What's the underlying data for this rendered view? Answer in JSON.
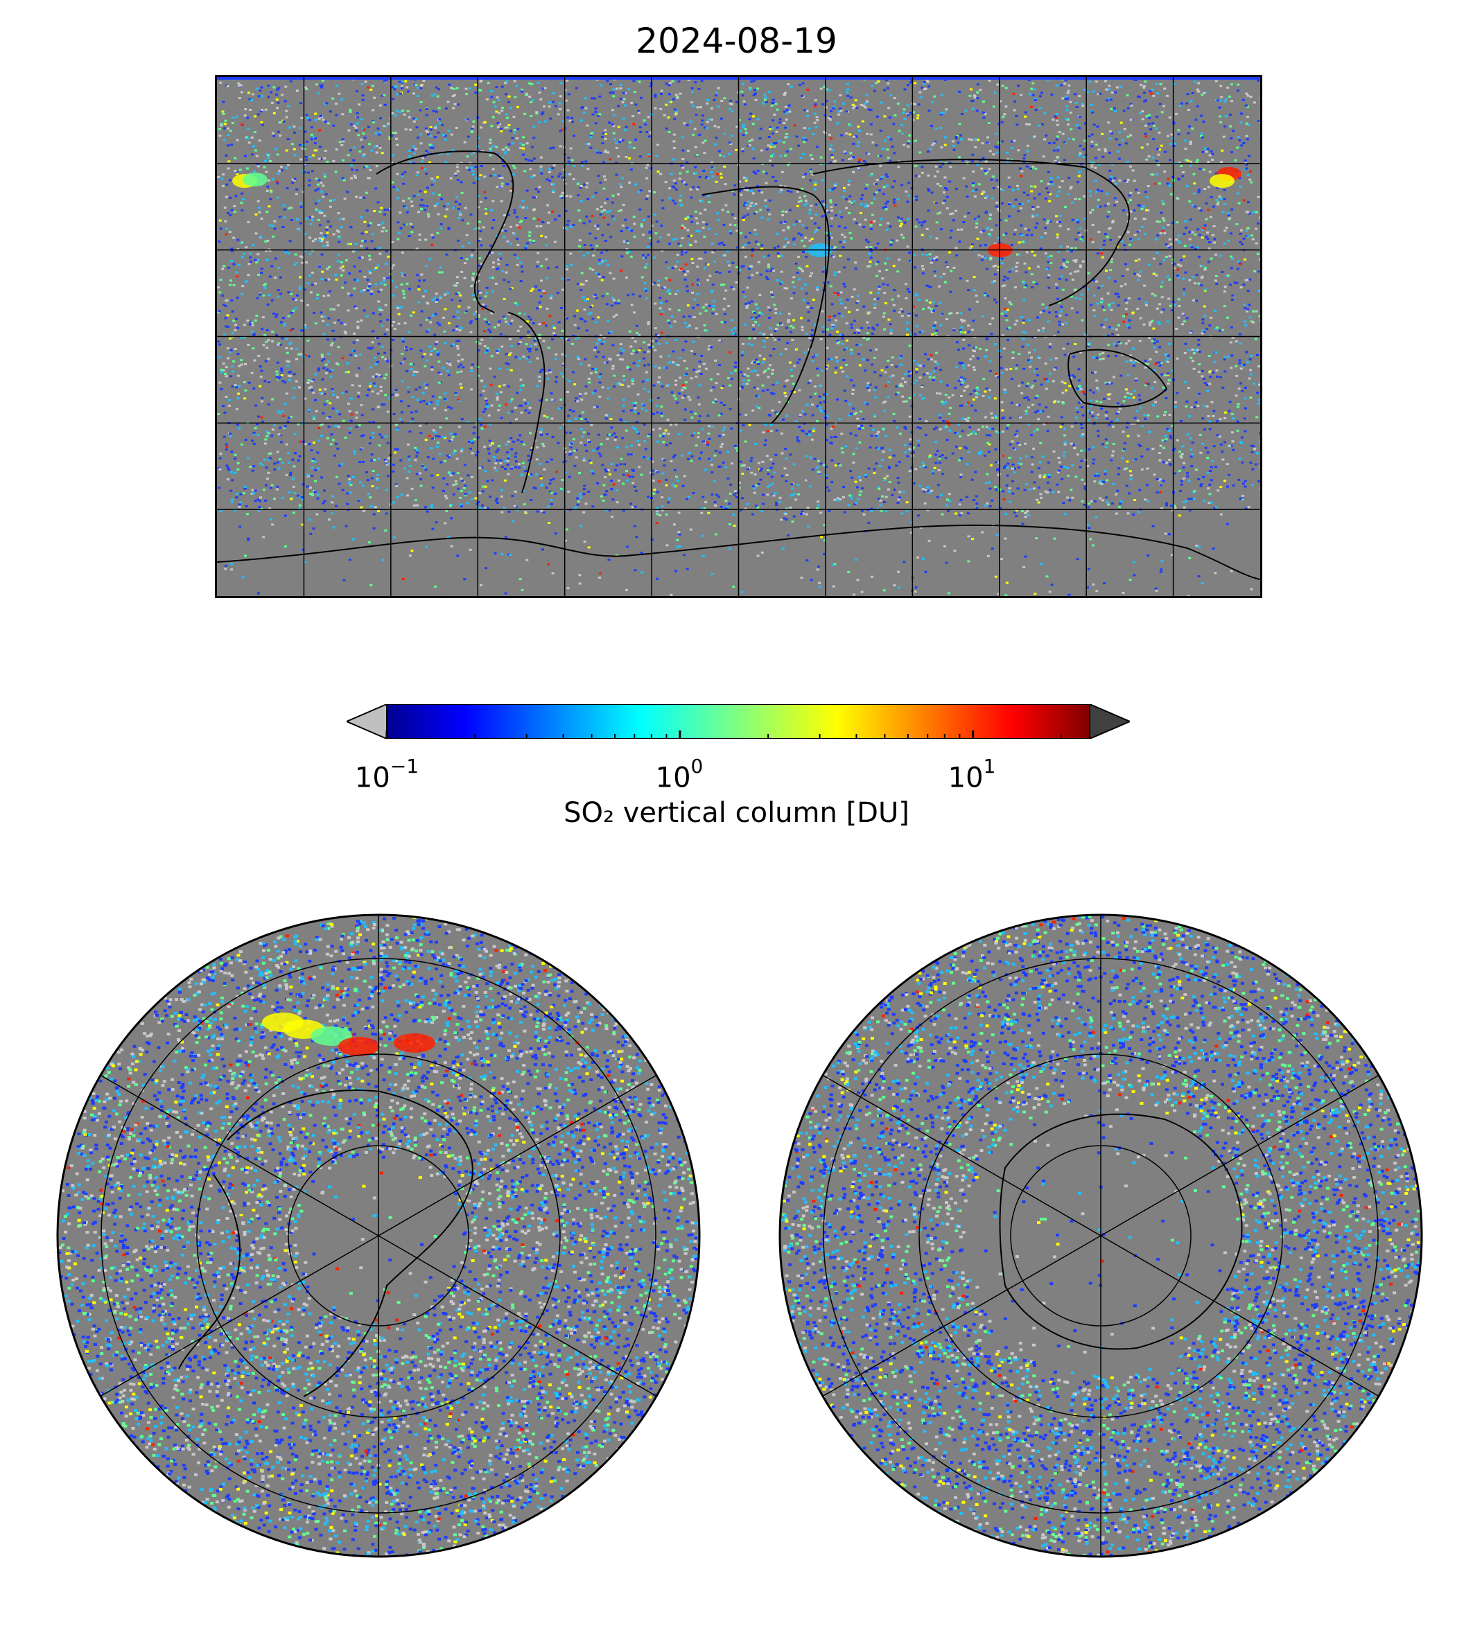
{
  "title": "2024-08-19",
  "colorbar": {
    "label": "SO₂ vertical column [DU]",
    "scale": "log",
    "range": [
      0.1,
      25
    ],
    "ticks": [
      {
        "base": "10",
        "exp": "−1",
        "value": 0.1
      },
      {
        "base": "10",
        "exp": "0",
        "value": 1
      },
      {
        "base": "10",
        "exp": "1",
        "value": 10
      }
    ],
    "colormap": "jet",
    "under_color": "#c0c0c0",
    "over_color": "#404040",
    "nodata_color": "#808080"
  },
  "panels": [
    {
      "projection": "plate-carree",
      "extent": "global",
      "gridlines": true,
      "coastlines": true
    },
    {
      "projection": "north-polar-stereographic",
      "gridlines": true,
      "coastlines": true
    },
    {
      "projection": "south-polar-stereographic",
      "gridlines": true,
      "coastlines": true
    }
  ],
  "colors": {
    "background_gray": "#808080",
    "light_gray": "#c8c8c8",
    "blue": "#1e3cff",
    "cyan": "#20c0ff",
    "green": "#60ff90",
    "yellow": "#ffff00",
    "red": "#ff2000"
  }
}
